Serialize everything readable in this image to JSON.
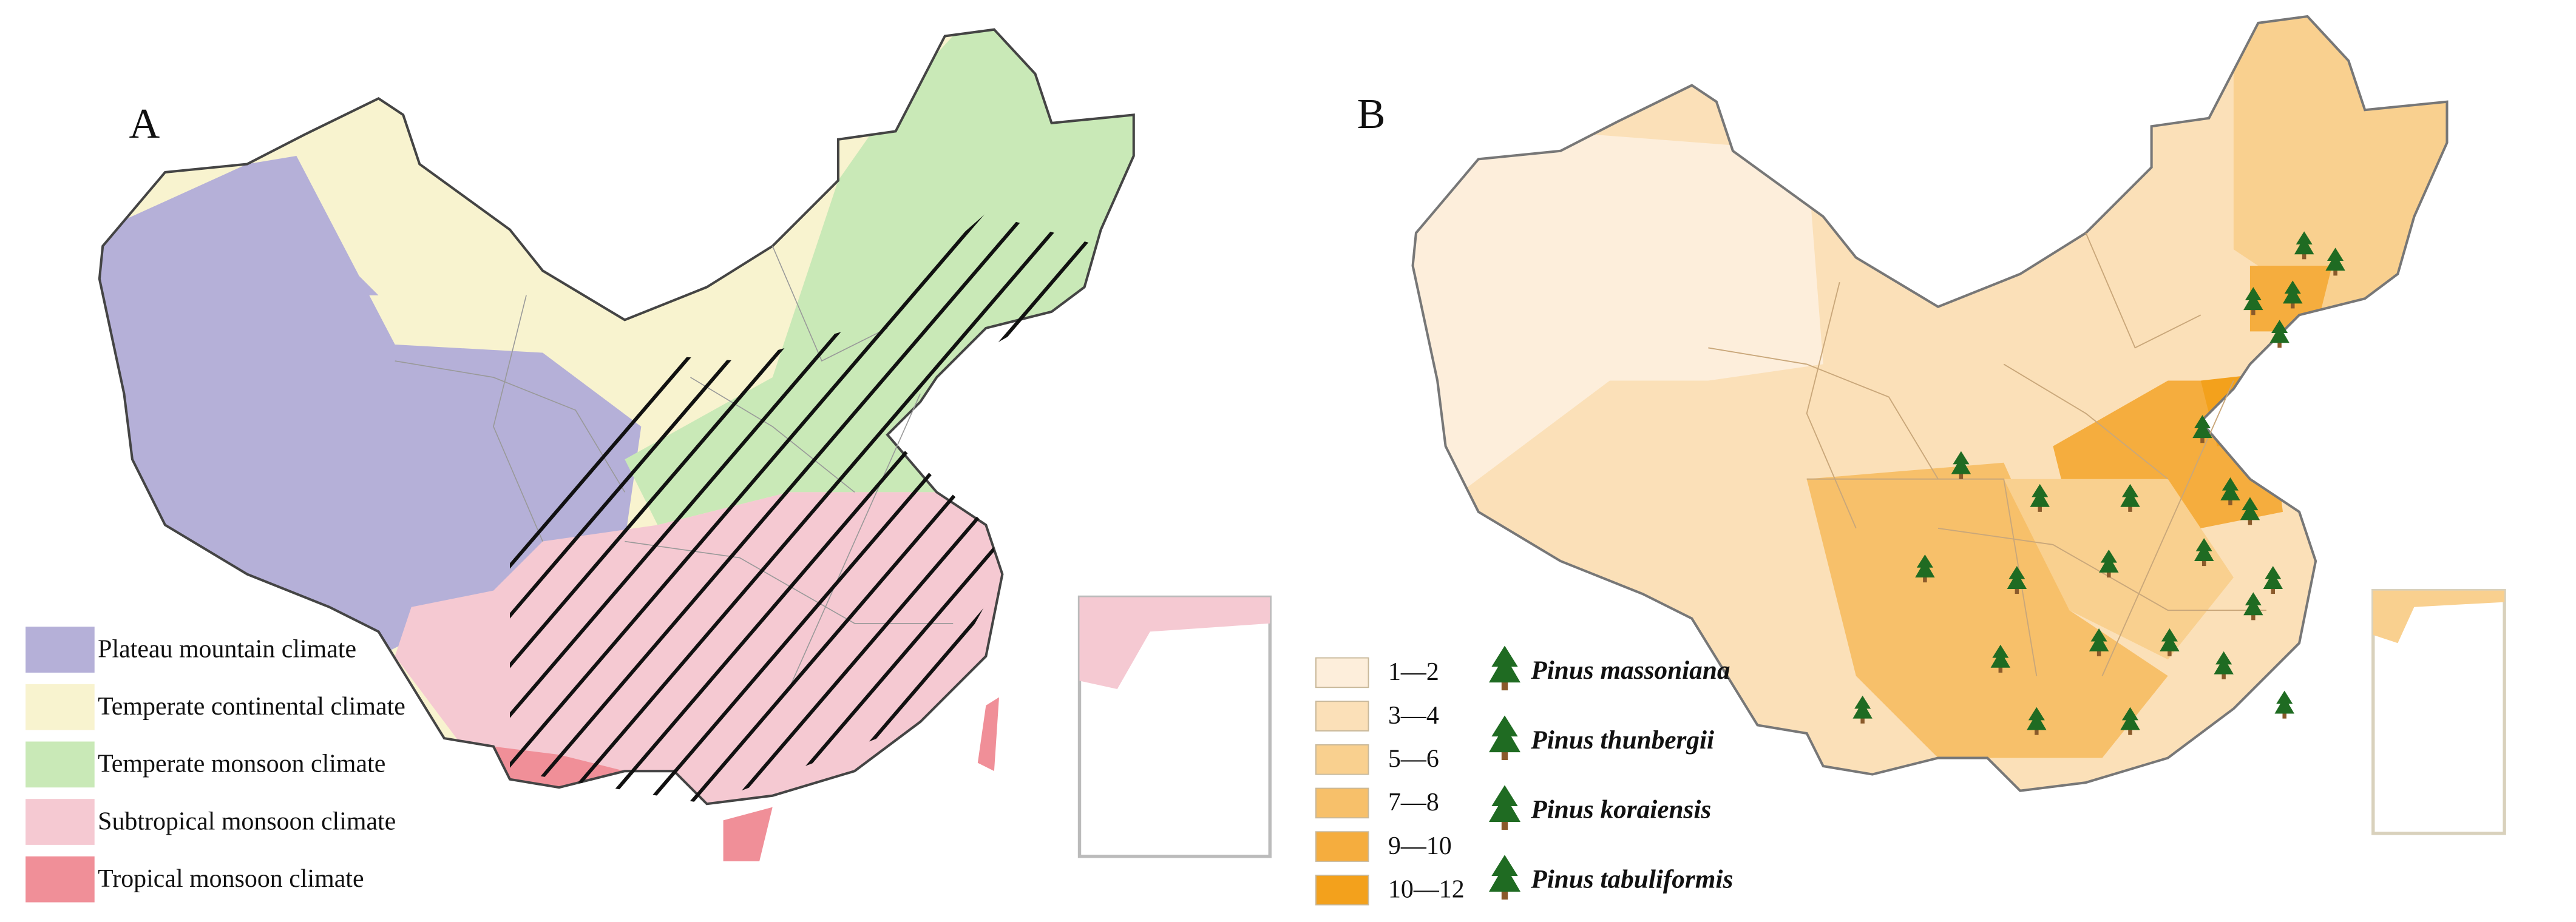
{
  "panels": [
    {
      "label": "A",
      "legend": [
        {
          "label": "Plateau mountain climate",
          "color": "#b5b0d8"
        },
        {
          "label": "Temperate continental climate",
          "color": "#f8f3cf"
        },
        {
          "label": "Temperate monsoon climate",
          "color": "#c9e9b7"
        },
        {
          "label": "Subtropical monsoon climate",
          "color": "#f5c9d2"
        },
        {
          "label": "Tropical monsoon climate",
          "color": "#f08f98"
        }
      ]
    },
    {
      "label": "B",
      "legend": [
        {
          "label": "1—2",
          "color": "#fdeedb"
        },
        {
          "label": "3—4",
          "color": "#fbe0b8"
        },
        {
          "label": "5—6",
          "color": "#f9d08f"
        },
        {
          "label": "7—8",
          "color": "#f7c06a"
        },
        {
          "label": "9—10",
          "color": "#f5ad3e"
        },
        {
          "label": "10—12",
          "color": "#f3a11c"
        }
      ],
      "species": [
        "Pinus massoniana",
        "Pinus thunbergii",
        "Pinus koraiensis",
        "Pinus tabuliformis"
      ]
    }
  ]
}
